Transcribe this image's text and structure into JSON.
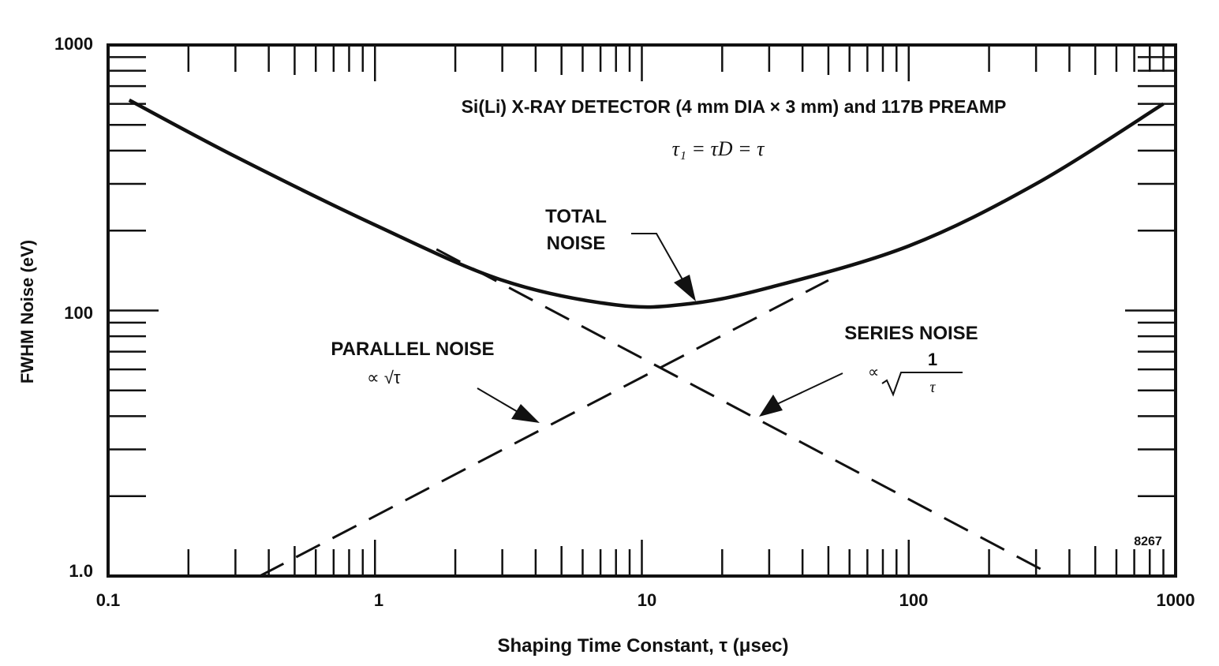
{
  "chart_data": {
    "type": "line",
    "title": "Si(Li) X-RAY DETECTOR (4 mm DIA × 3 mm) and 117B PREAMP",
    "subtitle": "τ₁ = τD = τ",
    "xlabel": "Shaping Time Constant, τ (μsec)",
    "ylabel": "FWHM Noise (eV)",
    "x_scale": "log",
    "y_scale": "log",
    "xlim": [
      0.1,
      1000
    ],
    "y_range_note": "axis labels printed as 1.0, 100, 1000",
    "x_tick_labels": [
      "0.1",
      "1",
      "10",
      "100",
      "1000"
    ],
    "y_tick_labels": [
      "1.0",
      "100",
      "1000"
    ],
    "grid": false,
    "series": [
      {
        "name": "TOTAL NOISE",
        "style": "solid",
        "x": [
          0.12,
          0.3,
          1,
          3,
          8,
          15,
          30,
          100,
          300,
          900
        ],
        "y": [
          620,
          380,
          210,
          130,
          105,
          106,
          122,
          175,
          300,
          600
        ]
      },
      {
        "name": "PARALLEL NOISE",
        "label_formula": "∝ √τ",
        "style": "dashed",
        "x": [
          0.37,
          1,
          3,
          10,
          30,
          50
        ],
        "y": [
          10,
          20,
          33,
          60,
          100,
          130
        ]
      },
      {
        "name": "SERIES NOISE",
        "label_formula": "∝ 1/√τ",
        "style": "dashed",
        "x": [
          1.7,
          5,
          10,
          30,
          100,
          350
        ],
        "y": [
          170,
          90,
          62,
          35,
          18,
          10
        ]
      }
    ],
    "annotations": [
      {
        "text": [
          "TOTAL",
          "NOISE"
        ],
        "points_to": "TOTAL NOISE"
      },
      {
        "text": [
          "PARALLEL NOISE"
        ],
        "formula": "∝ √τ",
        "points_to": "PARALLEL NOISE"
      },
      {
        "text": [
          "SERIES NOISE"
        ],
        "formula_num": "1",
        "formula_prefix": "∝",
        "formula_den": "τ",
        "points_to": "SERIES NOISE"
      }
    ],
    "figure_id": "8267"
  }
}
